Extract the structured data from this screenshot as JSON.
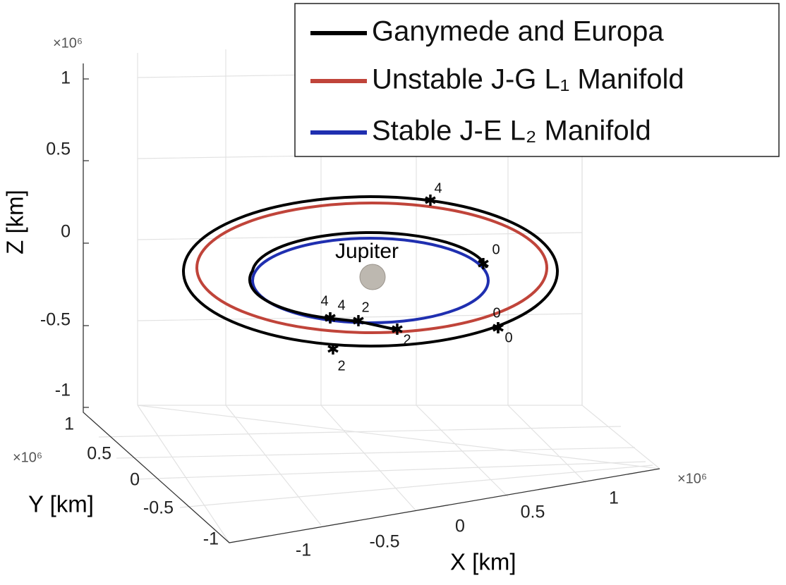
{
  "legend": [
    {
      "label": "Ganymede and Europa",
      "color": "#000000"
    },
    {
      "label": "Unstable J-G L₁ Manifold",
      "color": "#c0443a"
    },
    {
      "label": "Stable J-E L₂ Manifold",
      "color": "#1f2fb0"
    }
  ],
  "z_axis": {
    "label": "Z [km]",
    "exponent": "×10⁶",
    "ticks": [
      "1",
      "0.5",
      "0",
      "-0.5",
      "-1"
    ]
  },
  "y_axis": {
    "label": "Y [km]",
    "exponent": "×10⁶",
    "ticks": [
      "1",
      "0.5",
      "0",
      "-0.5",
      "-1"
    ]
  },
  "x_axis": {
    "label": "X [km]",
    "exponent": "×10⁶",
    "ticks": [
      "-1",
      "-0.5",
      "0",
      "0.5",
      "1"
    ]
  },
  "annotations": {
    "body": "Jupiter",
    "markers": [
      "4",
      "0",
      "4",
      "4",
      "2",
      "2",
      "0",
      "0",
      "2"
    ]
  }
}
